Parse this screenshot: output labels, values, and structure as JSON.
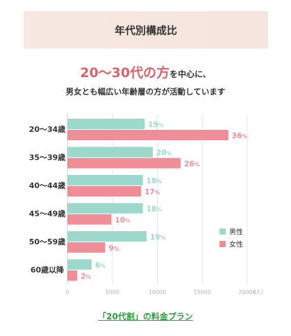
{
  "title": "年代別構成比",
  "headline": {
    "emphasis": "20～30代の方",
    "rest": "を中心に、",
    "subline": "男女とも幅広い年齢層の方が活動しています"
  },
  "chart_data": {
    "type": "bar",
    "orientation": "horizontal",
    "categories": [
      "20～34歳",
      "35～39歳",
      "40～44歳",
      "45～49歳",
      "50～59歳",
      "60歳以降"
    ],
    "series": [
      {
        "name": "男性",
        "values": [
          8600,
          9500,
          8400,
          8400,
          8800,
          2700
        ],
        "labels": [
          "19",
          "20",
          "18",
          "18",
          "19",
          "6"
        ],
        "color": "#9dd8cd"
      },
      {
        "name": "女性",
        "values": [
          17900,
          12600,
          8200,
          4900,
          4200,
          1100
        ],
        "labels": [
          "36",
          "26",
          "17",
          "10",
          "9",
          "2"
        ],
        "color": "#ef8e96"
      }
    ],
    "label_unit": "%",
    "xlim": [
      0,
      20000
    ],
    "xticks": [
      "0",
      "5000",
      "10000",
      "15000",
      "20000"
    ],
    "xunit": "（人）",
    "legend_position": "right"
  },
  "plan_link": "「20代割」の料金プラン"
}
